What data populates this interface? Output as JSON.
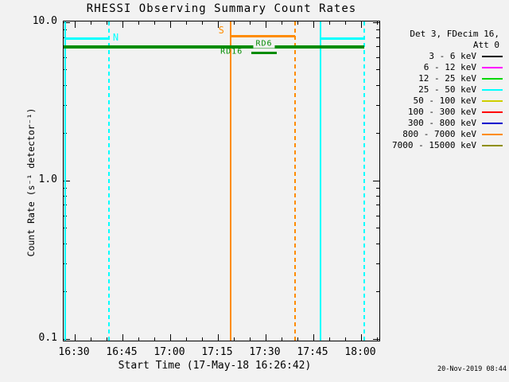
{
  "title": "RHESSI Observing Summary Count Rates",
  "generated_at": "20-Nov-2019 08:44",
  "colors": {
    "background": "#f2f2f2",
    "axis": "#000000",
    "night_flag": "#00ffff",
    "saa_flag": "#ff8c00",
    "decimation_flag": "#008c00"
  },
  "chart_data": {
    "type": "line",
    "title": "RHESSI Observing Summary Count Rates",
    "xlabel": "Start Time (17-May-18 16:26:42)",
    "ylabel": "Count Rate (s⁻¹ detector⁻¹)",
    "grid": false,
    "legend_position": "right-outside",
    "x_axis": {
      "unit": "time HH:MM",
      "start_minutes": 986.5,
      "end_minutes": 1086.25,
      "major_ticks": [
        {
          "minutes": 990,
          "label": "16:30"
        },
        {
          "minutes": 1005,
          "label": "16:45"
        },
        {
          "minutes": 1020,
          "label": "17:00"
        },
        {
          "minutes": 1035,
          "label": "17:15"
        },
        {
          "minutes": 1050,
          "label": "17:30"
        },
        {
          "minutes": 1065,
          "label": "17:45"
        },
        {
          "minutes": 1080,
          "label": "18:00"
        }
      ],
      "minor_ticks_minutes": [
        995,
        1000,
        1010,
        1015,
        1025,
        1030,
        1040,
        1045,
        1055,
        1060,
        1070,
        1075,
        1085
      ]
    },
    "y_axis": {
      "scale": "log",
      "min": 0.0955,
      "max": 10.12,
      "major_ticks": [
        {
          "value": 10.0,
          "label": "10.0"
        },
        {
          "value": 1.0,
          "label": "1.0"
        },
        {
          "value": 0.1,
          "label": "0.1"
        }
      ],
      "minor_ticks_values": [
        0.2,
        0.3,
        0.4,
        0.5,
        0.6,
        0.7,
        0.8,
        0.9,
        2,
        3,
        4,
        5,
        6,
        7,
        8,
        9
      ]
    },
    "series": [],
    "flags": [
      {
        "id": "night",
        "label": "N",
        "color": "#00ffff",
        "level": 7.9,
        "intervals": [
          [
            987.0,
            1000.75
          ],
          [
            1067.25,
            1081.0
          ]
        ],
        "boundaries": true,
        "thickness": 3,
        "label_t": 1003.0,
        "label_level": 8.0,
        "label_size": 12,
        "label_bg": false
      },
      {
        "id": "saa",
        "label": "S",
        "color": "#ff8c00",
        "level": 8.2,
        "intervals": [
          [
            1039.0,
            1059.25
          ]
        ],
        "boundaries": true,
        "thickness": 3,
        "label_t": 1036.2,
        "label_level": 8.9,
        "label_size": 12,
        "label_bg": false
      },
      {
        "id": "rd6",
        "label": "RD6",
        "color": "#008c00",
        "level": 7.0,
        "intervals": [
          [
            986.5,
            1081.0
          ]
        ],
        "boundaries": false,
        "thickness": 4,
        "label_t": 1049.5,
        "label_level": 7.3,
        "label_size": 10,
        "label_bg": true
      },
      {
        "id": "rd16",
        "label": "RD16",
        "color": "#008c00",
        "level": 6.4,
        "intervals": [
          [
            1045.5,
            1053.5
          ]
        ],
        "boundaries": false,
        "thickness": 3,
        "label_t": 1039.3,
        "label_level": 6.55,
        "label_size": 10,
        "label_bg": false
      }
    ]
  },
  "legend": {
    "header_line1": "Det 3, FDecim 16,",
    "header_line2": "Att 0",
    "entries": [
      {
        "label": "3 - 6 keV",
        "color": "#000000"
      },
      {
        "label": "6 - 12 keV",
        "color": "#ff00ff"
      },
      {
        "label": "12 - 25 keV",
        "color": "#00d800"
      },
      {
        "label": "25 - 50 keV",
        "color": "#00ffff"
      },
      {
        "label": "50 - 100 keV",
        "color": "#cfcf00"
      },
      {
        "label": "100 - 300 keV",
        "color": "#ff0000"
      },
      {
        "label": "300 - 800 keV",
        "color": "#0000cd"
      },
      {
        "label": "800 - 7000 keV",
        "color": "#ff8c00"
      },
      {
        "label": "7000 - 15000 keV",
        "color": "#8f8f00"
      }
    ]
  }
}
